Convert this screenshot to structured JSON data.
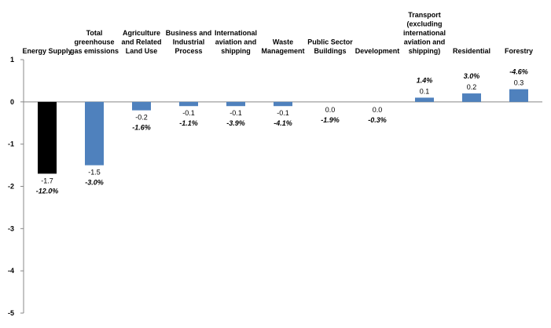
{
  "chart_data": {
    "type": "bar",
    "categories": [
      "Energy Supply",
      "Total greenhouse gas emissions",
      "Agriculture and Related Land Use",
      "Business and Industrial Process",
      "International aviation and shipping",
      "Waste Management",
      "Public Sector Buildings",
      "Development",
      "Transport (excluding international aviation and shipping)",
      "Residential",
      "Forestry"
    ],
    "category_label_lines": [
      [
        "Energy Supply"
      ],
      [
        "Total",
        "greenhouse",
        "gas emissions"
      ],
      [
        "Agriculture",
        "and Related",
        "Land Use"
      ],
      [
        "Business and",
        "Industrial",
        "Process"
      ],
      [
        "International",
        "aviation and",
        "shipping"
      ],
      [
        "Waste",
        "Management"
      ],
      [
        "Public Sector",
        "Buildings"
      ],
      [
        "Development"
      ],
      [
        "Transport",
        "(excluding",
        "international",
        "aviation and",
        "shipping)"
      ],
      [
        "Residential"
      ],
      [
        "Forestry"
      ]
    ],
    "values": [
      -1.7,
      -1.5,
      -0.2,
      -0.1,
      -0.1,
      -0.1,
      0.0,
      0.0,
      0.1,
      0.2,
      0.3
    ],
    "value_labels": [
      "-1.7",
      "-1.5",
      "-0.2",
      "-0.1",
      "-0.1",
      "-0.1",
      "0.0",
      "0.0",
      "0.1",
      "0.2",
      "0.3"
    ],
    "percent_labels": [
      "-12.0%",
      "-3.0%",
      "-1.6%",
      "-1.1%",
      "-3.9%",
      "-4.1%",
      "-1.9%",
      "-0.3%",
      "1.4%",
      "3.0%",
      "-4.6%"
    ],
    "bar_colors": [
      "#000000",
      "#4f81bd",
      "#4f81bd",
      "#4f81bd",
      "#4f81bd",
      "#4f81bd",
      "#4f81bd",
      "#4f81bd",
      "#4f81bd",
      "#4f81bd",
      "#4f81bd"
    ],
    "title": "",
    "xlabel": "",
    "ylabel": "",
    "ylim": [
      -5,
      1
    ],
    "yticks": [
      "1",
      "0",
      "-1",
      "-2",
      "-3",
      "-4",
      "-5"
    ],
    "grid": false,
    "legend": "none"
  }
}
